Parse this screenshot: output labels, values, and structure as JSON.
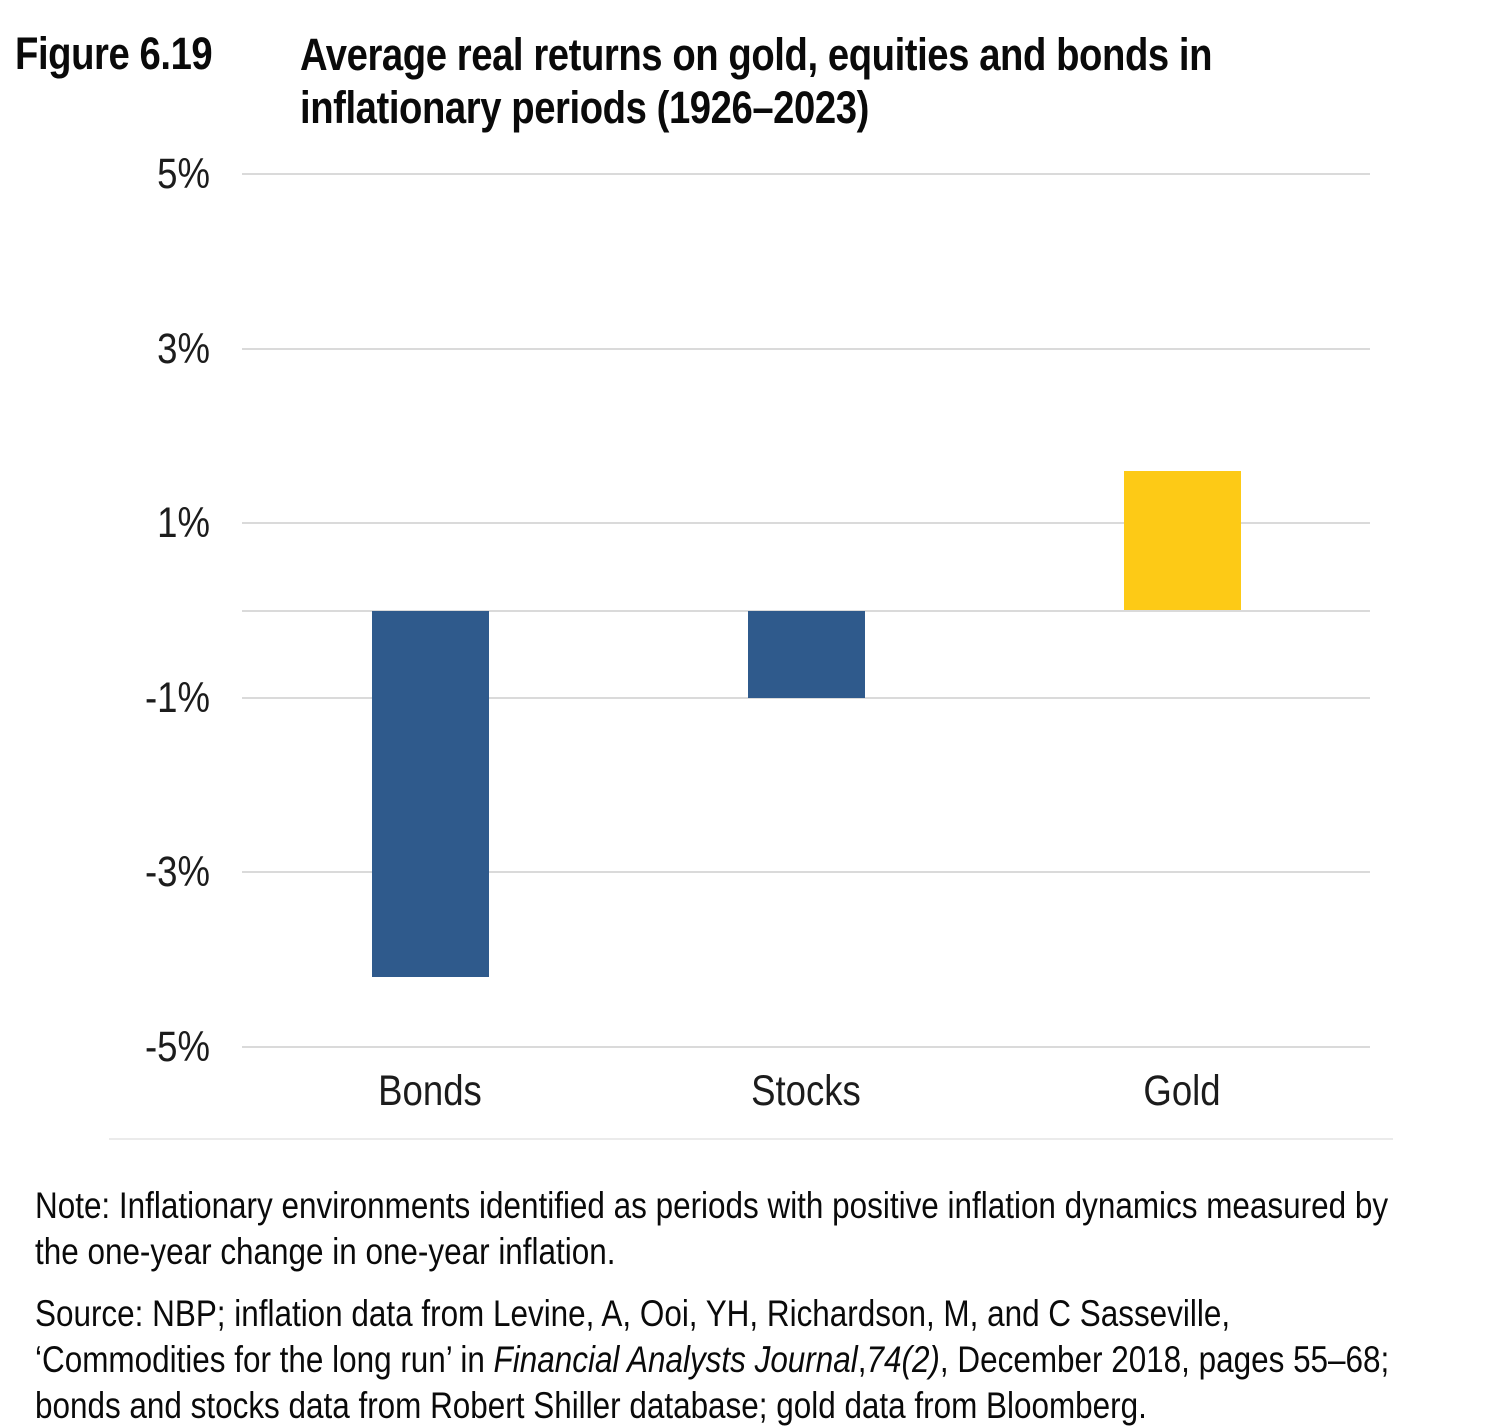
{
  "figure": {
    "label": "Figure 6.19",
    "title_lines": [
      "Average real returns on gold, equities and bonds in",
      "inflationary periods (1926–2023)"
    ]
  },
  "chart_data": {
    "type": "bar",
    "title": "Average real returns on gold, equities and bonds in inflationary periods (1926–2023)",
    "categories": [
      "Bonds",
      "Stocks",
      "Gold"
    ],
    "values": [
      -4.2,
      -1.0,
      1.6
    ],
    "unit": "percent",
    "bar_colors": [
      "#2f5a8c",
      "#2f5a8c",
      "#fdca16"
    ],
    "ylim": [
      -5,
      5
    ],
    "yticks": [
      5,
      3,
      1,
      -1,
      -3,
      -5
    ],
    "ytick_labels": [
      "5%",
      "3%",
      "1%",
      "-1%",
      "-3%",
      "-5%"
    ],
    "gridlines": [
      5,
      3,
      1,
      0,
      -1,
      -3,
      -5
    ],
    "grid": true,
    "legend": "none",
    "xlabel": "",
    "ylabel": "",
    "colors": {
      "bonds_stocks_bar": "#2f5a8c",
      "gold_bar": "#fdca16",
      "gridline": "#dadada"
    }
  },
  "note": {
    "lines": [
      "Note: Inflationary environments identified as periods with positive inflation dynamics measured by",
      "the one-year change in one-year inflation."
    ]
  },
  "source": {
    "lines": [
      [
        {
          "t": "Source: NBP; inflation data from Levine, A, Ooi, YH, Richardson, M, and C Sasseville,",
          "i": false
        }
      ],
      [
        {
          "t": "‘Commodities for the long run’ in ",
          "i": false
        },
        {
          "t": "Financial Analysts Journal",
          "i": true
        },
        {
          "t": ",",
          "i": false
        },
        {
          "t": "74(2)",
          "i": true
        },
        {
          "t": ", December 2018, pages 55–68;",
          "i": false
        }
      ],
      [
        {
          "t": "bonds and stocks data from Robert Shiller database; gold data from Bloomberg.",
          "i": false
        }
      ]
    ]
  }
}
